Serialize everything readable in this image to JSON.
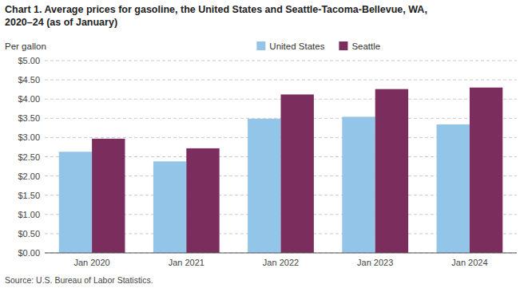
{
  "chart_data": {
    "type": "bar",
    "title": [
      "Chart 1. Average prices for gasoline, the United States and Seattle-Tacoma-Bellevue, WA,",
      "2020–24 (as of January)"
    ],
    "ylabel": "Per gallon",
    "source": "Source: U.S. Bureau of Labor Statistics.",
    "categories": [
      "Jan 2020",
      "Jan 2021",
      "Jan 2022",
      "Jan 2023",
      "Jan 2024"
    ],
    "series": [
      {
        "name": "United States",
        "color": "#92C5E8",
        "values": [
          2.63,
          2.38,
          3.49,
          3.54,
          3.34
        ]
      },
      {
        "name": "Seattle",
        "color": "#7B2D5E",
        "values": [
          2.97,
          2.72,
          4.12,
          4.26,
          4.3
        ]
      }
    ],
    "ylim": [
      0,
      5.0
    ],
    "yticks": [
      {
        "value": 0.0,
        "label": "$0.00"
      },
      {
        "value": 0.5,
        "label": "$0.50"
      },
      {
        "value": 1.0,
        "label": "$1.00"
      },
      {
        "value": 1.5,
        "label": "$1.50"
      },
      {
        "value": 2.0,
        "label": "$2.00"
      },
      {
        "value": 2.5,
        "label": "$2.50"
      },
      {
        "value": 3.0,
        "label": "$3.00"
      },
      {
        "value": 3.5,
        "label": "$3.50"
      },
      {
        "value": 4.0,
        "label": "$4.00"
      },
      {
        "value": 4.5,
        "label": "$4.50"
      },
      {
        "value": 5.0,
        "label": "$5.00"
      }
    ],
    "grid": true,
    "legend": "top"
  }
}
